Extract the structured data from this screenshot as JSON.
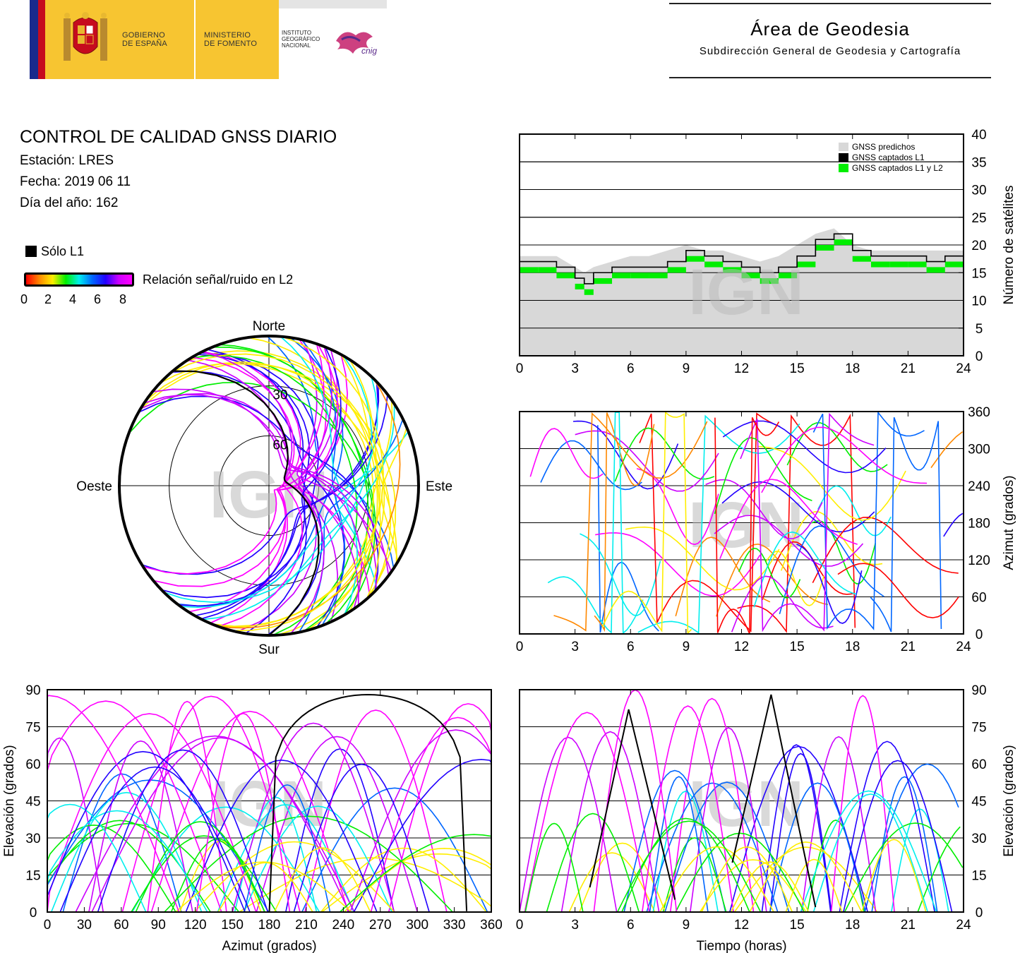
{
  "header": {
    "gov_text": "GOBIERNO\nDE ESPAÑA",
    "ministry_text": "MINISTERIO\nDE FOMENTO",
    "ign_text": "INSTITUTO\nGEOGRÁFICO\nNACIONAL",
    "cnig_text": "cnig",
    "area_title": "Área de Geodesia",
    "area_subtitle": "Subdirección General de Geodesia y Cartografía"
  },
  "info": {
    "title": "CONTROL DE CALIDAD GNSS DIARIO",
    "station": "Estación: LRES",
    "date": "Fecha: 2019 06 11",
    "doy": "Día del año: 162"
  },
  "legend": {
    "l1_only": "Sólo L1",
    "snr_label": "Relación señal/ruido en L2",
    "snr_ticks": [
      "0",
      "2",
      "4",
      "6",
      "8"
    ]
  },
  "watermark": "IGN",
  "colors": {
    "predicted": "#d8d8d8",
    "l1": "#000000",
    "l1l2": "#00ee00",
    "snr_gradient": [
      "#ff0000",
      "#ff8800",
      "#ffee00",
      "#00ee00",
      "#00eeee",
      "#0066ff",
      "#2200ff",
      "#cc00ff",
      "#ff00ff"
    ]
  },
  "chart_data": [
    {
      "type": "line",
      "id": "satellites",
      "xlabel": "",
      "ylabel": "Número de satélites",
      "xlim": [
        0,
        24
      ],
      "ylim": [
        0,
        40
      ],
      "xticks": [
        "0",
        "3",
        "6",
        "9",
        "12",
        "15",
        "18",
        "21",
        "24"
      ],
      "yticks": [
        "0",
        "5",
        "10",
        "15",
        "20",
        "25",
        "30",
        "35",
        "40"
      ],
      "grid": "horizontal",
      "legend_position": "top-right",
      "x": [
        0,
        1,
        2,
        3,
        3.5,
        4,
        5,
        6,
        7,
        8,
        9,
        10,
        11,
        12,
        13,
        14,
        15,
        16,
        17,
        18,
        19,
        20,
        21,
        22,
        23,
        24
      ],
      "series": [
        {
          "name": "GNSS predichos",
          "values": [
            18,
            18,
            18,
            16,
            15,
            16,
            17,
            18,
            18,
            19,
            20,
            19,
            19,
            18,
            17,
            18,
            20,
            22,
            23,
            20,
            19,
            19,
            19,
            19,
            19,
            19
          ]
        },
        {
          "name": "GNSS captados L1",
          "values": [
            17,
            17,
            16,
            14,
            13,
            15,
            16,
            16,
            16,
            17,
            19,
            18,
            17,
            16,
            15,
            16,
            18,
            21,
            22,
            19,
            18,
            18,
            18,
            17,
            18,
            18
          ]
        },
        {
          "name": "GNSS captados L1 y L2",
          "values": [
            16,
            16,
            15,
            13,
            12,
            14,
            15,
            15,
            15,
            16,
            18,
            17,
            16,
            15,
            14,
            15,
            17,
            20,
            21,
            18,
            17,
            17,
            17,
            16,
            17,
            17
          ]
        }
      ]
    },
    {
      "type": "scatter",
      "id": "azimuth_time",
      "xlabel": "",
      "ylabel": "Azimut (grados)",
      "xlim": [
        0,
        24
      ],
      "ylim": [
        0,
        360
      ],
      "xticks": [
        "0",
        "3",
        "6",
        "9",
        "12",
        "15",
        "18",
        "21",
        "24"
      ],
      "yticks": [
        "0",
        "60",
        "120",
        "180",
        "240",
        "300",
        "360"
      ],
      "grid": "horizontal"
    },
    {
      "type": "scatter",
      "id": "elevation_azimuth",
      "xlabel": "Azimut (grados)",
      "ylabel": "Elevación (grados)",
      "xlim": [
        0,
        360
      ],
      "ylim": [
        0,
        90
      ],
      "xticks": [
        "0",
        "30",
        "60",
        "90",
        "120",
        "150",
        "180",
        "210",
        "240",
        "270",
        "300",
        "330",
        "360"
      ],
      "yticks": [
        "0",
        "15",
        "30",
        "45",
        "60",
        "75",
        "90"
      ],
      "grid": "horizontal"
    },
    {
      "type": "scatter",
      "id": "elevation_time",
      "xlabel": "Tiempo (horas)",
      "ylabel": "Elevación (grados)",
      "xlim": [
        0,
        24
      ],
      "ylim": [
        0,
        90
      ],
      "xticks": [
        "0",
        "3",
        "6",
        "9",
        "12",
        "15",
        "18",
        "21",
        "24"
      ],
      "yticks": [
        "0",
        "15",
        "30",
        "45",
        "60",
        "75",
        "90"
      ],
      "grid": "horizontal"
    },
    {
      "type": "scatter",
      "id": "skyplot",
      "directions": {
        "north": "Norte",
        "south": "Sur",
        "east": "Este",
        "west": "Oeste"
      },
      "ring_labels": [
        "30",
        "60"
      ]
    }
  ]
}
